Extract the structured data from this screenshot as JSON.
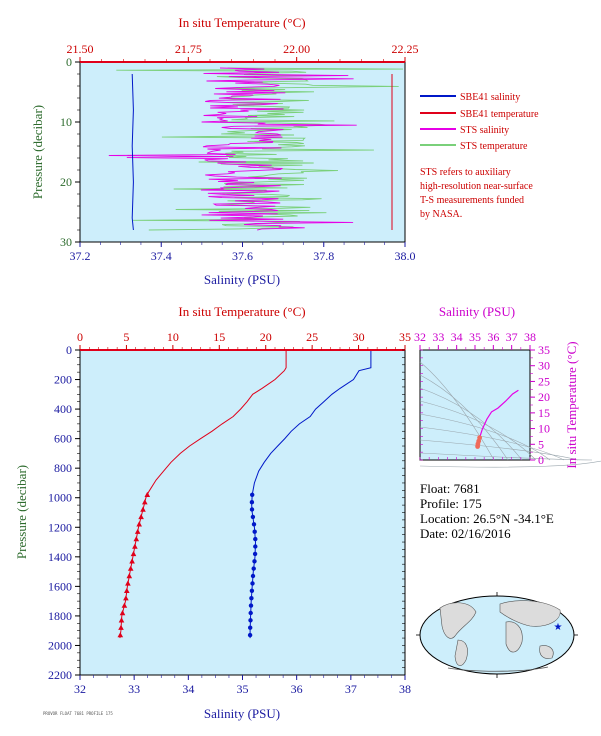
{
  "colors": {
    "plot_bg": "#cdeefb",
    "red": "#e0001a",
    "blue": "#0018c8",
    "magenta": "#e600e6",
    "green": "#7ad07a",
    "axis_blue": "#1a1aa0",
    "axis_red": "#cc0000",
    "axis_green": "#2d6b2d",
    "axis_magenta": "#cc00cc"
  },
  "legend": {
    "items": [
      {
        "label": "SBE41 salinity",
        "color": "#0018c8"
      },
      {
        "label": "SBE41 temperature",
        "color": "#e0001a"
      },
      {
        "label": "STS salinity",
        "color": "#e600e6"
      },
      {
        "label": "STS temperature",
        "color": "#7ad07a"
      }
    ],
    "note": [
      "STS refers to auxiliary",
      "high-resolution near-surface",
      "T-S measurements funded",
      "by NASA."
    ]
  },
  "info": {
    "float": "Float:  7681",
    "profile": "Profile:  175",
    "location": "Location:  26.5°N  -34.1°E",
    "date": "Date:  02/16/2016"
  },
  "footer_code": "PROVOR FLOAT 7681 PROFILE 175",
  "chart_data": [
    {
      "type": "line",
      "title": "",
      "top_axis_label": "In situ Temperature (°C)",
      "top_ticks": [
        "21.50",
        "21.75",
        "22.00",
        "22.25"
      ],
      "top_range": [
        21.5,
        22.25
      ],
      "xlabel": "Salinity (PSU)",
      "x_ticks": [
        "37.2",
        "37.4",
        "37.6",
        "37.8",
        "38.0"
      ],
      "x_range": [
        37.2,
        38.0
      ],
      "ylabel": "Pressure (decibar)",
      "y_ticks": [
        "0",
        "10",
        "20",
        "30"
      ],
      "y_range": [
        0,
        30
      ],
      "y_inverted": true,
      "series": [
        {
          "name": "SBE41 salinity",
          "x": [
            37.33,
            37.33,
            37.33,
            37.33,
            37.33,
            37.33
          ],
          "y": [
            2,
            8,
            14,
            20,
            26,
            28
          ]
        },
        {
          "name": "SBE41 temperature",
          "x": [
            22.22,
            22.22,
            22.22
          ],
          "y": [
            2,
            14,
            28
          ]
        }
      ],
      "sts_depth_range": [
        1,
        28
      ],
      "sts_salinity_center": 37.6,
      "sts_temperature_center": 21.93
    },
    {
      "type": "line",
      "title": "",
      "top_axis_label": "In situ Temperature (°C)",
      "top_ticks": [
        "0",
        "5",
        "10",
        "15",
        "20",
        "25",
        "30",
        "35"
      ],
      "top_range": [
        0,
        35
      ],
      "xlabel": "Salinity (PSU)",
      "x_ticks": [
        "32",
        "33",
        "34",
        "35",
        "36",
        "37",
        "38"
      ],
      "x_range": [
        32,
        38
      ],
      "ylabel": "Pressure (decibar)",
      "y_ticks": [
        "0",
        "200",
        "400",
        "600",
        "800",
        "1000",
        "1200",
        "1400",
        "1600",
        "1800",
        "2000",
        "2200"
      ],
      "y_range": [
        0,
        2200
      ],
      "y_inverted": true,
      "series": [
        {
          "name": "temperature",
          "x": [
            22.2,
            22.2,
            22.0,
            21.0,
            19.6,
            18.6,
            18.0,
            17.3,
            16.5,
            15.3,
            14.2,
            13.0,
            11.8,
            10.8,
            9.8,
            9.0,
            8.2,
            7.4,
            7.1,
            6.9,
            6.7,
            6.3,
            6.0,
            5.7,
            5.4,
            5.1,
            4.9,
            4.7,
            4.5,
            4.4,
            4.3
          ],
          "y": [
            0,
            120,
            140,
            200,
            260,
            300,
            350,
            400,
            450,
            500,
            550,
            600,
            650,
            700,
            760,
            820,
            880,
            960,
            1000,
            1050,
            1100,
            1200,
            1300,
            1400,
            1500,
            1600,
            1700,
            1750,
            1800,
            1900,
            1950
          ]
        },
        {
          "name": "salinity",
          "x": [
            37.37,
            37.37,
            37.15,
            37.05,
            36.8,
            36.65,
            36.5,
            36.35,
            36.25,
            36.05,
            35.9,
            35.78,
            35.65,
            35.52,
            35.4,
            35.3,
            35.22,
            35.18,
            35.17,
            35.18,
            35.22,
            35.24,
            35.23,
            35.2,
            35.18,
            35.16,
            35.15,
            35.14,
            35.14
          ],
          "y": [
            0,
            120,
            140,
            200,
            260,
            300,
            350,
            400,
            450,
            500,
            550,
            600,
            650,
            700,
            760,
            820,
            900,
            980,
            1050,
            1100,
            1200,
            1300,
            1400,
            1500,
            1600,
            1700,
            1800,
            1900,
            1950
          ]
        }
      ]
    },
    {
      "type": "scatter",
      "title": "",
      "xlabel": "Salinity (PSU)",
      "x_ticks": [
        "32",
        "33",
        "34",
        "35",
        "36",
        "37",
        "38"
      ],
      "x_range": [
        32,
        38
      ],
      "ylabel": "In situ Temperature (°C)",
      "y_ticks": [
        "0",
        "5",
        "10",
        "15",
        "20",
        "25",
        "30",
        "35"
      ],
      "y_range": [
        0,
        35
      ],
      "series": [
        {
          "name": "T-S",
          "x": [
            35.14,
            35.16,
            35.2,
            35.25,
            35.4,
            35.65,
            35.9,
            36.25,
            36.65,
            37.05,
            37.37
          ],
          "y": [
            4.3,
            5.1,
            6.0,
            7.1,
            9.8,
            13.0,
            15.3,
            16.5,
            18.6,
            21.0,
            22.2
          ]
        }
      ]
    },
    {
      "type": "map",
      "title": "",
      "marker": {
        "lat": 26.5,
        "lon": -34.1
      }
    }
  ]
}
